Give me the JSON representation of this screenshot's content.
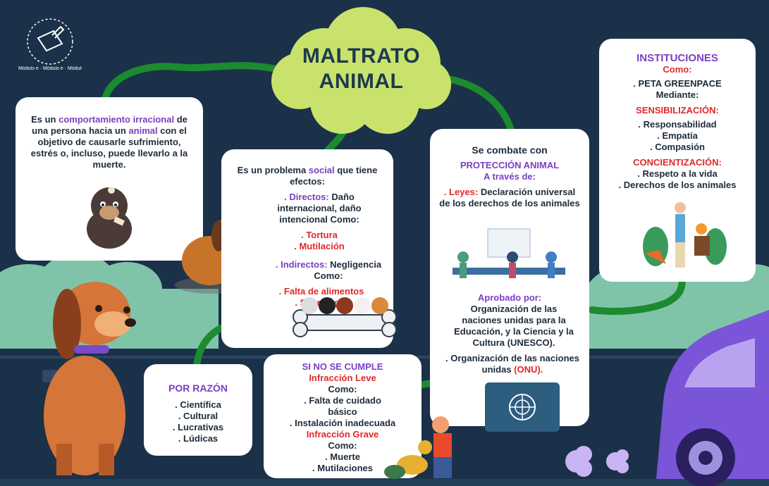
{
  "logo": {
    "ring_text": "Módulo e · Módulo e · Módulo e ·"
  },
  "title": {
    "line1": "MALTRATO",
    "line2": "ANIMAL"
  },
  "definition": {
    "part1": "Es un ",
    "highlight1": "comportamiento irracional",
    "part2": " de una persona hacia un ",
    "highlight2": "animal",
    "part3": " con el objetivo de causarle sufrimiento, estrés o, incluso, puede llevarlo a la muerte."
  },
  "effects": {
    "intro_a": "Es un problema ",
    "intro_social": "social",
    "intro_b": " que tiene efectos:",
    "direct_label": ". Directos:",
    "direct_text": " Daño internacional, daño intencional Como:",
    "direct_items": [
      ". Tortura",
      ". Mutilación"
    ],
    "indirect_label": ". Indirectos:",
    "indirect_text": " Negligencia Como:",
    "indirect_items": [
      ". Falta de alimentos",
      ". Sin refugio"
    ]
  },
  "protection": {
    "heading": "Se combate con",
    "label": "PROTECCIÓN ANIMAL",
    "via": "A través de:",
    "laws_label": ". Leyes:",
    "laws_text": " Declaración universal de los derechos de los animales",
    "approved_label": "Aprobado por:",
    "approved_text": "Organización de las naciones unidas para la Educación, y la Ciencia y la Cultura (UNESCO).",
    "onu_text": ". Organización de las naciones unidas ",
    "onu_highlight": "(ONU)."
  },
  "institutions": {
    "title": "INSTITUCIONES",
    "como": "Como:",
    "org": ". PETA GREENPACE",
    "mediante": "Mediante:",
    "sens_title": "SENSIBILIZACIÓN:",
    "sens_items": [
      ". Responsabilidad",
      ". Empatía",
      ". Compasión"
    ],
    "conc_title": "CONCIENTIZACIÓN:",
    "conc_items": [
      ". Respeto a la vida",
      ". Derechos de los animales"
    ]
  },
  "reasons": {
    "title": "POR RAZÓN",
    "items": [
      ". Científica",
      ". Cultural",
      ". Lucrativas",
      ". Lúdicas"
    ]
  },
  "infractions": {
    "title": "SI NO SE CUMPLE",
    "leve_title": "Infracción Leve",
    "leve_como": "Como:",
    "leve_items": [
      ". Falta de cuidado básico",
      ". Instalación inadecuada"
    ],
    "grave_title": "Infracción Grave",
    "grave_como": "Como:",
    "grave_items": [
      ". Muerte",
      ". Mutilaciones"
    ]
  },
  "colors": {
    "background": "#1b3149",
    "cloud": "#c9e26b",
    "connector": "#1c8a2e",
    "accent_purple": "#7b3fc4",
    "accent_red": "#e0282a",
    "text_dark": "#1d2b3a"
  }
}
